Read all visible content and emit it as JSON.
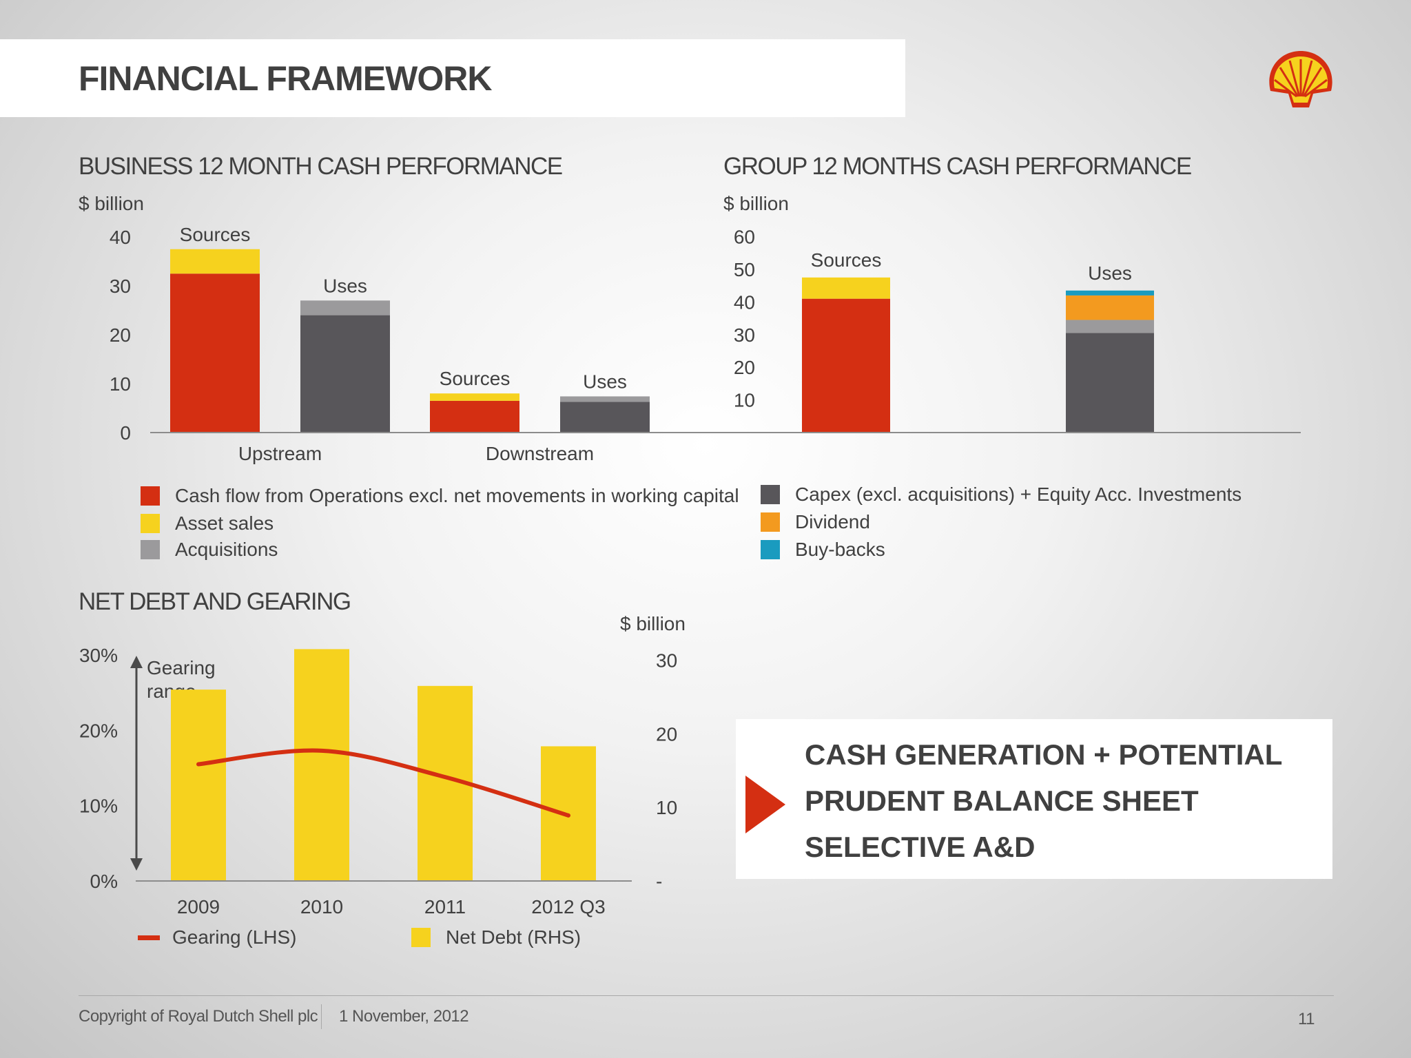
{
  "page": {
    "title": "FINANCIAL FRAMEWORK",
    "footer": {
      "copyright": "Copyright of Royal Dutch Shell plc",
      "date": "1 November, 2012",
      "page_number": "11"
    }
  },
  "colors": {
    "red": "#d42f12",
    "yellow": "#f6d21e",
    "dark_gray": "#58565a",
    "light_gray": "#9b9a9c",
    "orange": "#f39a1f",
    "teal": "#1a9bbf",
    "axis": "#8c8c8c"
  },
  "legend_sources": [
    {
      "label": "Cash flow from Operations excl. net movements in working capital",
      "color": "#d42f12"
    },
    {
      "label": "Asset sales",
      "color": "#f6d21e"
    },
    {
      "label": "Acquisitions",
      "color": "#9b9a9c"
    }
  ],
  "legend_uses": [
    {
      "label": "Capex (excl. acquisitions) + Equity Acc. Investments",
      "color": "#58565a"
    },
    {
      "label": "Dividend",
      "color": "#f39a1f"
    },
    {
      "label": "Buy-backs",
      "color": "#1a9bbf"
    }
  ],
  "callout": {
    "lines": [
      "CASH GENERATION + POTENTIAL",
      "PRUDENT BALANCE SHEET",
      "SELECTIVE A&D"
    ]
  },
  "chart_data": [
    {
      "id": "business",
      "type": "bar",
      "stacked": true,
      "title": "BUSINESS 12 MONTH CASH PERFORMANCE",
      "unit": "$ billion",
      "ylim": [
        0,
        40
      ],
      "yticks": [
        0,
        10,
        20,
        30,
        40
      ],
      "yticklabels": [
        "0",
        "10",
        "20",
        "30",
        "40"
      ],
      "groups": [
        "Upstream",
        "Downstream"
      ],
      "bars": [
        {
          "group": "Upstream",
          "label": "Sources",
          "segments": [
            {
              "name": "Cash flow from Operations excl. net movements in working capital",
              "value": 32.5,
              "color": "#d42f12"
            },
            {
              "name": "Asset sales",
              "value": 5.0,
              "color": "#f6d21e"
            }
          ]
        },
        {
          "group": "Upstream",
          "label": "Uses",
          "segments": [
            {
              "name": "Capex (excl. acquisitions) + Equity Acc. Investments",
              "value": 24.0,
              "color": "#58565a"
            },
            {
              "name": "Acquisitions",
              "value": 3.0,
              "color": "#9b9a9c"
            }
          ]
        },
        {
          "group": "Downstream",
          "label": "Sources",
          "segments": [
            {
              "name": "Cash flow from Operations excl. net movements in working capital",
              "value": 6.5,
              "color": "#d42f12"
            },
            {
              "name": "Asset sales",
              "value": 1.5,
              "color": "#f6d21e"
            }
          ]
        },
        {
          "group": "Downstream",
          "label": "Uses",
          "segments": [
            {
              "name": "Capex (excl. acquisitions) + Equity Acc. Investments",
              "value": 6.3,
              "color": "#58565a"
            },
            {
              "name": "Acquisitions",
              "value": 1.1,
              "color": "#9b9a9c"
            }
          ]
        }
      ]
    },
    {
      "id": "group",
      "type": "bar",
      "stacked": true,
      "title": "GROUP 12 MONTHS CASH PERFORMANCE",
      "unit": "$ billion",
      "ylim": [
        0,
        60
      ],
      "yticks": [
        10,
        20,
        30,
        40,
        50,
        60
      ],
      "yticklabels": [
        "10",
        "20",
        "30",
        "40",
        "50",
        "60"
      ],
      "bars": [
        {
          "label": "Sources",
          "segments": [
            {
              "name": "Cash flow from Operations excl. net movements in working capital",
              "value": 41.0,
              "color": "#d42f12"
            },
            {
              "name": "Asset sales",
              "value": 6.5,
              "color": "#f6d21e"
            }
          ]
        },
        {
          "label": "Uses",
          "segments": [
            {
              "name": "Capex (excl. acquisitions) + Equity Acc. Investments",
              "value": 30.5,
              "color": "#58565a"
            },
            {
              "name": "Acquisitions",
              "value": 4.0,
              "color": "#9b9a9c"
            },
            {
              "name": "Dividend",
              "value": 7.5,
              "color": "#f39a1f"
            },
            {
              "name": "Buy-backs",
              "value": 1.5,
              "color": "#1a9bbf"
            }
          ]
        }
      ]
    },
    {
      "id": "net_debt",
      "type": "bar+line",
      "title": "NET DEBT AND GEARING",
      "categories": [
        "2009",
        "2010",
        "2011",
        "2012 Q3"
      ],
      "left_axis": {
        "ylim": [
          0,
          30
        ],
        "ticks": [
          0,
          10,
          20,
          30
        ],
        "ticklabels": [
          "0%",
          "10%",
          "20%",
          "30%"
        ]
      },
      "right_axis": {
        "label": "$ billion",
        "ylim": [
          0,
          35
        ],
        "ticks": [
          0,
          10,
          20,
          30
        ],
        "ticklabels": [
          "-",
          "10",
          "20",
          "30"
        ]
      },
      "gearing_range_label": [
        "Gearing",
        "range"
      ],
      "series": [
        {
          "name": "Net Debt (RHS)",
          "type": "bar",
          "axis": "right",
          "color": "#f6d21e",
          "values": [
            26,
            31.5,
            26.5,
            18.3
          ]
        },
        {
          "name": "Gearing (LHS)",
          "type": "line",
          "axis": "left",
          "color": "#d42f12",
          "values": [
            15.5,
            17.3,
            13.8,
            8.7
          ]
        }
      ]
    }
  ]
}
